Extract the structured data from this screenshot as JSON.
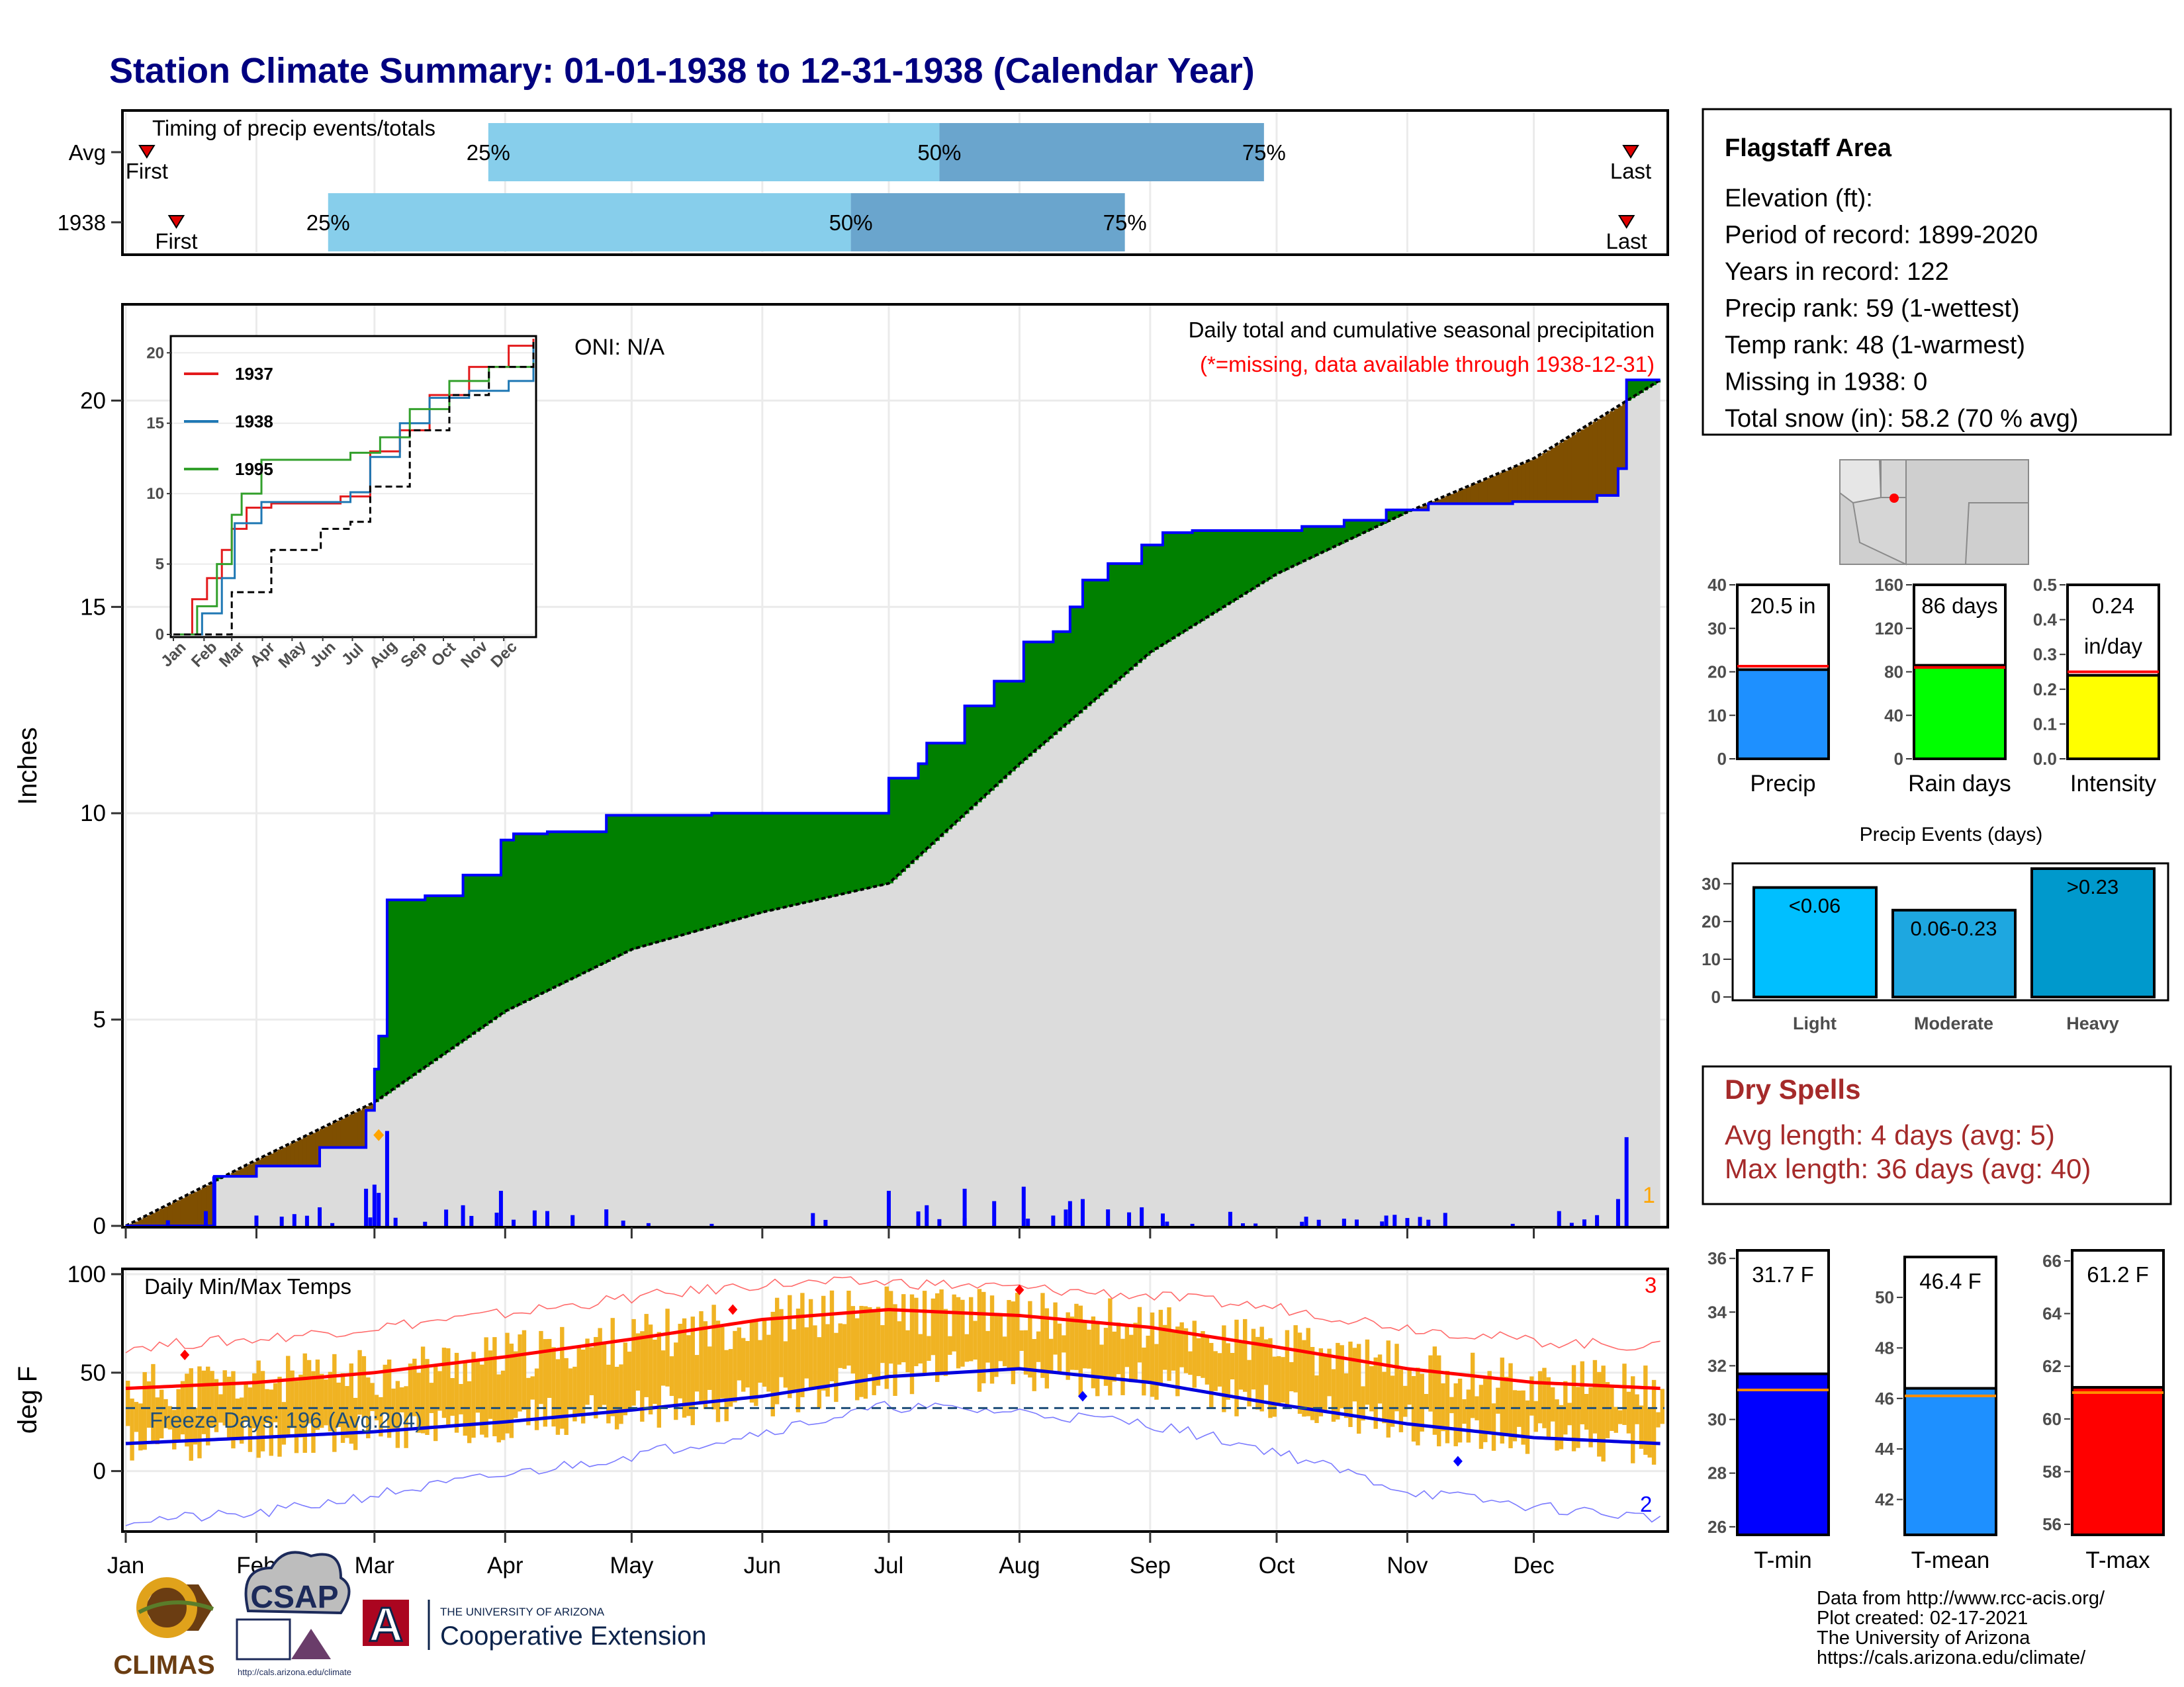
{
  "title": "Station Climate Summary: 01-01-1938 to 12-31-1938 (Calendar Year)",
  "timing": {
    "label": "Timing of precip events/totals",
    "rows": [
      {
        "name": "Avg",
        "first_doy": 6,
        "q25_doy": 87,
        "q50_doy": 194,
        "q75_doy": 271,
        "last_doy": 358,
        "first_label": "First",
        "last_label": "Last"
      },
      {
        "name": "1938",
        "first_doy": 13,
        "q25_doy": 49,
        "q50_doy": 173,
        "q75_doy": 238,
        "last_doy": 357,
        "first_label": "First",
        "last_label": "Last"
      }
    ],
    "pct_labels": [
      "25%",
      "50%",
      "75%"
    ]
  },
  "precip_panel": {
    "ylabel": "Inches",
    "yticks": [
      0,
      5,
      10,
      15,
      20
    ],
    "ylim": [
      0,
      22.3
    ],
    "oni": "ONI: N/A",
    "header": "Daily total and cumulative seasonal precipitation",
    "missing_note": "(*=missing, data available through 1938-12-31)",
    "corner_count": "1",
    "colors": {
      "above": "#008000",
      "below": "#7f4f00",
      "normal": "#dcdcdc",
      "line": "#0000ff"
    }
  },
  "inset": {
    "yticks": [
      0,
      5,
      10,
      15,
      20
    ],
    "months": [
      "Jan",
      "Feb",
      "Mar",
      "Apr",
      "May",
      "Jun",
      "Jul",
      "Aug",
      "Sep",
      "Oct",
      "Nov",
      "Dec"
    ],
    "legend": [
      {
        "name": "1937",
        "color": "#e31a1c"
      },
      {
        "name": "1938",
        "color": "#1f78b4"
      },
      {
        "name": "1995",
        "color": "#33a02c"
      }
    ]
  },
  "temp_panel": {
    "ylabel": "deg F",
    "label": "Daily Min/Max Temps",
    "freeze_text": "Freeze Days: 196 (Avg:204)",
    "yticks": [
      0,
      50,
      100
    ],
    "ylim": [
      -30,
      102
    ],
    "freeze_line": 32,
    "count_top": "3",
    "count_bottom": "2"
  },
  "months": [
    "Jan",
    "Feb",
    "Mar",
    "Apr",
    "May",
    "Jun",
    "Jul",
    "Aug",
    "Sep",
    "Oct",
    "Nov",
    "Dec"
  ],
  "info": {
    "station": "Flagstaff Area",
    "lines": [
      "Elevation (ft):",
      "Period of record: 1899-2020",
      "Years in record: 122",
      "Precip rank: 59 (1-wettest)",
      "Temp rank: 48 (1-warmest)",
      "Missing in 1938: 0",
      "Total snow (in): 58.2 (70 % avg)"
    ]
  },
  "mini_bars": [
    {
      "name": "Precip",
      "label1": "20.5 in",
      "label2": "",
      "value": 20.5,
      "avg": 21.3,
      "max": 40,
      "ticks": [
        "0",
        "10",
        "20",
        "30",
        "40"
      ],
      "color": "#1e90ff"
    },
    {
      "name": "Rain days",
      "label1": "86 days",
      "label2": "",
      "value": 86,
      "avg": 84,
      "max": 160,
      "ticks": [
        "0",
        "40",
        "80",
        "120",
        "160"
      ],
      "color": "#00ff00"
    },
    {
      "name": "Intensity",
      "label1": "0.24",
      "label2": "in/day",
      "value": 0.24,
      "avg": 0.25,
      "max": 0.5,
      "ticks": [
        "0.0",
        "0.1",
        "0.2",
        "0.3",
        "0.4",
        "0.5"
      ],
      "color": "#ffff00"
    }
  ],
  "events": {
    "title": "Precip Events (days)",
    "yticks": [
      0,
      10,
      20,
      30
    ],
    "ymax": 34,
    "bars": [
      {
        "name": "Light",
        "label": "<0.06",
        "value": 29,
        "color": "#00bfff"
      },
      {
        "name": "Moderate",
        "label": "0.06-0.23",
        "value": 23,
        "color": "#1ea7e0"
      },
      {
        "name": "Heavy",
        "label": ">0.23",
        "value": 34,
        "color": "#0099cc"
      }
    ]
  },
  "dry_spells": {
    "title": "Dry Spells",
    "avg": "Avg length: 4 days (avg: 5)",
    "max": "Max length: 36 days (avg: 40)"
  },
  "temp_bars": [
    {
      "name": "T-min",
      "label": "31.7 F",
      "value": 31.7,
      "avg": 31.1,
      "min": 25.7,
      "max": 36.3,
      "ticks": [
        "26",
        "28",
        "30",
        "32",
        "34",
        "36"
      ],
      "tick_vals": [
        26,
        28,
        30,
        32,
        34,
        36
      ],
      "color": "#0000ff"
    },
    {
      "name": "T-mean",
      "label": "46.4 F",
      "value": 46.4,
      "avg": 46.1,
      "min": 40.6,
      "max": 51.6,
      "ticks": [
        "42",
        "44",
        "46",
        "48",
        "50"
      ],
      "tick_vals": [
        42,
        44,
        46,
        48,
        50
      ],
      "color": "#1e90ff"
    },
    {
      "name": "T-max",
      "label": "61.2 F",
      "value": 61.2,
      "avg": 61.0,
      "min": 55.6,
      "max": 66.4,
      "ticks": [
        "56",
        "58",
        "60",
        "62",
        "64",
        "66"
      ],
      "tick_vals": [
        56,
        58,
        60,
        62,
        64,
        66
      ],
      "color": "#ff0000"
    }
  ],
  "credits": [
    "Data from http://www.rcc-acis.org/",
    "Plot created: 02-17-2021",
    "The University of Arizona",
    "https://cals.arizona.edu/climate/"
  ],
  "logos": {
    "climas": "CLIMAS",
    "csap": "CSAP",
    "csap_url": "http://cals.arizona.edu/climate",
    "ua_line1": "THE UNIVERSITY OF ARIZONA",
    "ua_line2": "Cooperative Extension",
    "ua_mark": "A"
  },
  "chart_data": [
    {
      "type": "area",
      "title": "Daily total and cumulative seasonal precipitation",
      "ylabel": "Inches",
      "x_unit": "day of year (1938)",
      "ylim": [
        0,
        22.3
      ],
      "series": [
        {
          "name": "1938",
          "x": [
            1,
            22,
            32,
            47,
            58,
            60,
            61,
            63,
            72,
            81,
            90,
            93,
            101,
            115,
            140,
            175,
            182,
            189,
            191,
            200,
            207,
            214,
            221,
            225,
            228,
            234,
            242,
            247,
            254,
            262,
            280,
            290,
            300,
            310,
            330,
            350,
            355,
            357,
            365
          ],
          "values": [
            0.0,
            1.2,
            1.45,
            1.9,
            2.8,
            3.8,
            4.6,
            7.9,
            8.0,
            8.5,
            9.35,
            9.5,
            9.55,
            9.95,
            10.0,
            10.0,
            10.85,
            11.2,
            11.7,
            12.6,
            13.2,
            14.15,
            14.4,
            15.0,
            15.65,
            16.05,
            16.5,
            16.8,
            16.85,
            16.85,
            16.95,
            17.1,
            17.35,
            17.5,
            17.55,
            17.7,
            18.35,
            20.5,
            20.5
          ]
        }
      ]
    },
    {
      "type": "line",
      "title": "Daily Min/Max Temps",
      "ylabel": "deg F",
      "x_unit": "day of year (1938)",
      "ylim": [
        -30,
        102
      ],
      "series": [
        {
          "name": "avg max",
          "x": [
            1,
            32,
            60,
            91,
            121,
            152,
            182,
            213,
            244,
            274,
            305,
            335,
            365
          ],
          "values": [
            42,
            45,
            50,
            58,
            67,
            77,
            82,
            79,
            73,
            63,
            52,
            45,
            42
          ]
        },
        {
          "name": "avg min",
          "x": [
            1,
            32,
            60,
            91,
            121,
            152,
            182,
            213,
            244,
            274,
            305,
            335,
            365
          ],
          "values": [
            14,
            17,
            20,
            25,
            31,
            38,
            48,
            52,
            45,
            34,
            24,
            17,
            14
          ]
        },
        {
          "name": "record max",
          "x": [
            1,
            32,
            60,
            91,
            121,
            152,
            182,
            213,
            244,
            274,
            305,
            335,
            365
          ],
          "values": [
            63,
            67,
            73,
            80,
            88,
            95,
            96,
            93,
            89,
            83,
            73,
            66,
            63
          ]
        },
        {
          "name": "record min",
          "x": [
            1,
            32,
            60,
            91,
            121,
            152,
            182,
            213,
            244,
            274,
            305,
            335,
            365
          ],
          "values": [
            -25,
            -22,
            -12,
            -2,
            8,
            20,
            33,
            30,
            24,
            10,
            -10,
            -18,
            -24
          ]
        }
      ]
    }
  ]
}
